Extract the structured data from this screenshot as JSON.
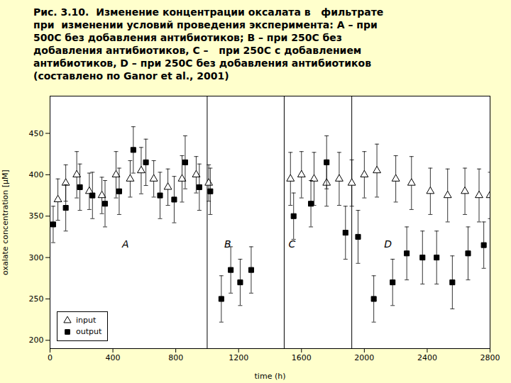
{
  "chart_data": {
    "type": "scatter",
    "title": "Рис. 3.10.  Изменение концентрации оксалата в   фильтрате\nпри  изменении условий проведения эксперимента: А – при\n500C без добавления антибиотиков; В – при 250C без\nдобавления антибиотиков, С –   при 250C с добавлением\nантибиотиков, D – при 250C без добавления антибиотиков\n(составлено по Ganor et al., 2001)",
    "xlabel": "time (h)",
    "ylabel": "oxalate concentration [μM]",
    "xlim": [
      0,
      2800
    ],
    "ylim": [
      190,
      495
    ],
    "xticks": [
      0,
      400,
      800,
      1200,
      1600,
      2000,
      2400,
      2800
    ],
    "yticks": [
      200,
      250,
      300,
      350,
      400,
      450
    ],
    "legend": "lower left",
    "background_color": "#ffffcc",
    "plot_background": "#ffffff",
    "section_lines": [
      1000,
      1490,
      1920
    ],
    "annotations": [
      {
        "text": "A",
        "x": 480,
        "y": 316
      },
      {
        "text": "B",
        "x": 1130,
        "y": 316
      },
      {
        "text": "C",
        "x": 1540,
        "y": 316
      },
      {
        "text": "D",
        "x": 2150,
        "y": 316
      }
    ],
    "series": [
      {
        "name": "input",
        "color": "#000000",
        "marker": "triangle-open",
        "x": [
          50,
          100,
          170,
          250,
          330,
          420,
          510,
          580,
          660,
          750,
          840,
          930,
          1010,
          1530,
          1600,
          1680,
          1760,
          1840,
          1920,
          2000,
          2080,
          2200,
          2300,
          2420,
          2530,
          2640,
          2730,
          2800
        ],
        "values": [
          370,
          390,
          400,
          380,
          375,
          400,
          395,
          405,
          395,
          385,
          395,
          400,
          390,
          395,
          400,
          395,
          390,
          395,
          390,
          400,
          405,
          395,
          390,
          380,
          375,
          380,
          375,
          375
        ],
        "yerr": [
          25,
          22,
          28,
          22,
          22,
          28,
          22,
          28,
          22,
          22,
          28,
          22,
          22,
          32,
          28,
          32,
          28,
          32,
          28,
          28,
          32,
          28,
          32,
          28,
          32,
          28,
          32,
          28
        ]
      },
      {
        "name": "output",
        "color": "#000000",
        "marker": "square",
        "x": [
          20,
          100,
          190,
          270,
          350,
          440,
          530,
          610,
          700,
          790,
          860,
          950,
          1020,
          1090,
          1150,
          1210,
          1280,
          1550,
          1660,
          1760,
          1880,
          1960,
          2060,
          2180,
          2270,
          2370,
          2460,
          2560,
          2660,
          2760
        ],
        "values": [
          340,
          360,
          385,
          375,
          365,
          380,
          430,
          415,
          375,
          370,
          415,
          385,
          380,
          250,
          285,
          270,
          285,
          350,
          365,
          415,
          330,
          325,
          250,
          270,
          305,
          300,
          300,
          270,
          305,
          315
        ],
        "yerr": [
          22,
          28,
          28,
          28,
          28,
          28,
          28,
          28,
          28,
          28,
          32,
          28,
          28,
          28,
          28,
          28,
          28,
          28,
          28,
          32,
          32,
          32,
          28,
          28,
          32,
          32,
          32,
          32,
          32,
          28
        ]
      }
    ]
  }
}
